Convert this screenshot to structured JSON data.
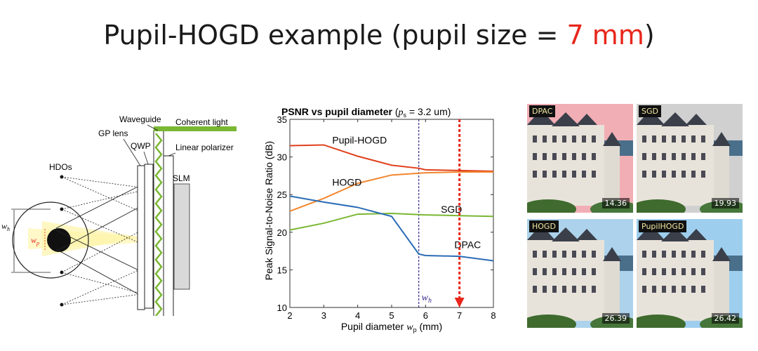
{
  "title": {
    "prefix": "Pupil-HOGD example (pupil size = ",
    "highlight": "7 mm",
    "suffix": ")"
  },
  "diagram": {
    "labels": {
      "waveguide": "Waveguide",
      "coherent_light": "Coherent light",
      "gp_lens": "GP lens",
      "qwp": "QWP",
      "linear_polarizer": "Linear polarizer",
      "hdos": "HDOs",
      "slm": "SLM",
      "wh": "w",
      "wh_sub": "h",
      "wp": "w",
      "wp_sub": "p"
    },
    "colors": {
      "accent": "#7ab733",
      "beam": "#fff8c8",
      "pupil_marker": "#e8261b"
    }
  },
  "chart_data": {
    "type": "line",
    "title": "PSNR vs pupil diameter",
    "title_param": "p",
    "title_param_sub": "s",
    "title_param_value": " = 3.2 um)",
    "xlabel": "Pupil diameter ",
    "xlabel_var": "w",
    "xlabel_var_sub": "p",
    "xlabel_unit": " (mm)",
    "ylabel": "Peak Signal-to-Noise Ratio (dB)",
    "xlim": [
      2,
      8
    ],
    "ylim": [
      10,
      35
    ],
    "xticks": [
      2,
      3,
      4,
      5,
      6,
      7,
      8
    ],
    "yticks": [
      10,
      15,
      20,
      25,
      30,
      35
    ],
    "series": [
      {
        "name": "Pupil-HOGD",
        "color": "#e0401c",
        "x": [
          2,
          3,
          4,
          5,
          5.8,
          6,
          7,
          8
        ],
        "y": [
          31.5,
          31.6,
          30.1,
          28.9,
          28.5,
          28.3,
          28.2,
          28.1
        ]
      },
      {
        "name": "HOGD",
        "color": "#f2862e",
        "x": [
          2,
          3,
          4,
          5,
          6,
          7,
          8
        ],
        "y": [
          22.8,
          24.5,
          26.5,
          27.6,
          27.9,
          28.0,
          28.0
        ]
      },
      {
        "name": "SGD",
        "color": "#7ab733",
        "x": [
          2,
          3,
          4,
          5,
          6,
          7,
          8
        ],
        "y": [
          20.3,
          21.2,
          22.4,
          22.5,
          22.3,
          22.2,
          22.1
        ]
      },
      {
        "name": "DPAC",
        "color": "#2b6cb5",
        "x": [
          2,
          3,
          4,
          5,
          5.8,
          6,
          7,
          8
        ],
        "y": [
          24.8,
          24.0,
          23.3,
          22.1,
          17.1,
          16.9,
          16.8,
          16.2
        ]
      }
    ],
    "vline_wh": {
      "x": 5.8,
      "label": "w",
      "label_sub": "h",
      "color": "#3a2a8a"
    },
    "arrow_pupil": {
      "x": 7,
      "color": "#e8261b"
    }
  },
  "gallery": [
    {
      "method": "DPAC",
      "psnr": "14.36",
      "tint": "#f0a0a8"
    },
    {
      "method": "SGD",
      "psnr": "19.93",
      "tint": "#c8c8c8"
    },
    {
      "method": "HOGD",
      "psnr": "26.39",
      "tint": "#9fcbe8"
    },
    {
      "method": "PupilHOGD",
      "psnr": "26.42",
      "tint": "#8ec6ec"
    }
  ]
}
